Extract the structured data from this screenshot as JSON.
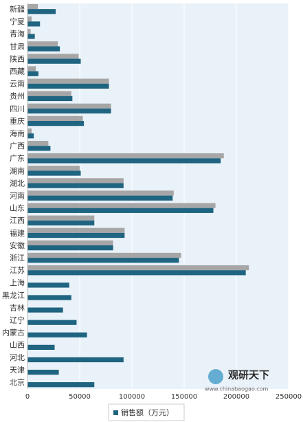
{
  "chart_data": {
    "type": "bar",
    "orientation": "horizontal",
    "categories": [
      "新疆",
      "宁夏",
      "青海",
      "甘肃",
      "陕西",
      "西藏",
      "云南",
      "贵州",
      "四川",
      "重庆",
      "海南",
      "广西",
      "广东",
      "湖南",
      "湖北",
      "河南",
      "山东",
      "江西",
      "福建",
      "安徽",
      "浙江",
      "江苏",
      "上海",
      "黑龙江",
      "吉林",
      "辽宁",
      "内蒙古",
      "山西",
      "河北",
      "天津",
      "北京"
    ],
    "series": [
      {
        "color": "#a6a6a6",
        "values": [
          10000,
          4000,
          3000,
          29000,
          49000,
          8000,
          78000,
          42000,
          80000,
          53000,
          4000,
          20000,
          188000,
          50000,
          92000,
          140000,
          180000,
          64000,
          93000,
          82000,
          147000,
          212000,
          null,
          null,
          null,
          null,
          null,
          null,
          null,
          null,
          null
        ]
      },
      {
        "name": "销售额（万元）",
        "color": "#1f6480",
        "values": [
          27000,
          12000,
          7000,
          31000,
          51000,
          10500,
          78000,
          43000,
          80000,
          54000,
          6000,
          22000,
          185000,
          51000,
          92000,
          139000,
          178000,
          64000,
          93000,
          82000,
          145000,
          209000,
          40000,
          42000,
          34000,
          47000,
          57000,
          26000,
          92000,
          30000,
          64000
        ]
      }
    ],
    "xlim": [
      0,
      250000
    ],
    "xticks": [
      0,
      50000,
      100000,
      150000,
      200000,
      250000
    ],
    "grid": true,
    "legend": "bottom",
    "watermark": {
      "name": "观研天下",
      "url": "www.chinabaogao.com"
    }
  }
}
